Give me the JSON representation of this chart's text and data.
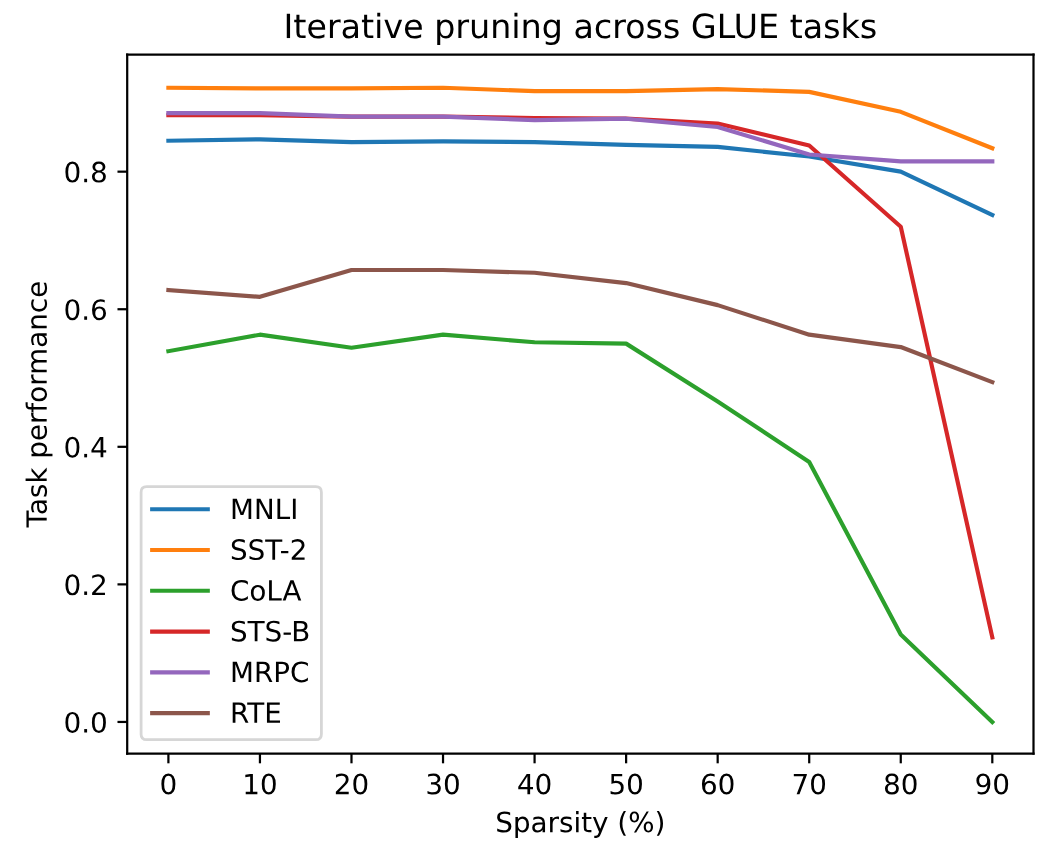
{
  "chart_data": {
    "type": "line",
    "title": "Iterative pruning across GLUE tasks",
    "xlabel": "Sparsity (%)",
    "ylabel": "Task performance",
    "x": [
      0,
      10,
      20,
      30,
      40,
      50,
      60,
      70,
      80,
      90
    ],
    "series": [
      {
        "name": "MNLI",
        "color": "#1f77b4",
        "values": [
          0.845,
          0.847,
          0.843,
          0.844,
          0.843,
          0.839,
          0.836,
          0.822,
          0.8,
          0.737
        ]
      },
      {
        "name": "SST-2",
        "color": "#ff7f0e",
        "values": [
          0.922,
          0.921,
          0.921,
          0.922,
          0.917,
          0.917,
          0.92,
          0.916,
          0.887,
          0.834
        ]
      },
      {
        "name": "CoLA",
        "color": "#2ca02c",
        "values": [
          0.539,
          0.563,
          0.544,
          0.563,
          0.552,
          0.55,
          0.466,
          0.378,
          0.127,
          0.0
        ]
      },
      {
        "name": "STS-B",
        "color": "#d62728",
        "values": [
          0.882,
          0.882,
          0.88,
          0.88,
          0.878,
          0.877,
          0.87,
          0.838,
          0.72,
          0.123
        ]
      },
      {
        "name": "MRPC",
        "color": "#9467bd",
        "values": [
          0.885,
          0.885,
          0.88,
          0.88,
          0.875,
          0.877,
          0.865,
          0.825,
          0.815,
          0.815
        ]
      },
      {
        "name": "RTE",
        "color": "#8c564b",
        "values": [
          0.628,
          0.618,
          0.657,
          0.657,
          0.653,
          0.638,
          0.606,
          0.563,
          0.545,
          0.494
        ]
      }
    ],
    "xlim": [
      -4.5,
      94.5
    ],
    "ylim": [
      -0.046,
      0.97
    ],
    "xticks": [
      0,
      10,
      20,
      30,
      40,
      50,
      60,
      70,
      80,
      90
    ],
    "yticks": [
      {
        "value": 0,
        "label": "0.0"
      },
      {
        "value": 0.2,
        "label": "0.2"
      },
      {
        "value": 0.4,
        "label": "0.4"
      },
      {
        "value": 0.6,
        "label": "0.6"
      },
      {
        "value": 0.8,
        "label": "0.8"
      }
    ],
    "legend": "bottom left",
    "grid": false,
    "marker": "none",
    "line_style": "solid"
  }
}
